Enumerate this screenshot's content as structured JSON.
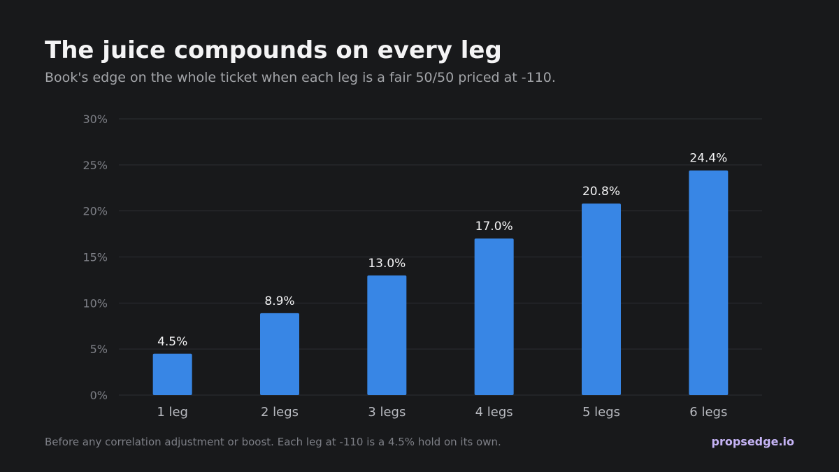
{
  "header": {
    "title": "The juice compounds on every leg",
    "subtitle": "Book's edge on the whole ticket when each leg is a fair 50/50 priced at -110."
  },
  "footer": {
    "note": "Before any correlation adjustment or boost. Each leg at -110 is a 4.5% hold on its own.",
    "brand": "propsedge.io"
  },
  "chart_data": {
    "type": "bar",
    "categories": [
      "1 leg",
      "2 legs",
      "3 legs",
      "4 legs",
      "5 legs",
      "6 legs"
    ],
    "values": [
      4.5,
      8.9,
      13.0,
      17.0,
      20.8,
      24.4
    ],
    "data_labels": [
      "4.5%",
      "8.9%",
      "13.0%",
      "17.0%",
      "20.8%",
      "24.4%"
    ],
    "ylim": [
      0,
      30
    ],
    "yticks": [
      0,
      5,
      10,
      15,
      20,
      25,
      30
    ],
    "ytick_labels": [
      "0%",
      "5%",
      "10%",
      "15%",
      "20%",
      "25%",
      "30%"
    ],
    "xlabel": "",
    "ylabel": "",
    "grid": true,
    "legend": "none"
  },
  "colors": {
    "background": "#18191b",
    "bar": "#3886e5",
    "grid": "#2c2e33",
    "tick_label": "#7d7f86",
    "category_label": "#b8bac0",
    "data_label": "#f4f4f5",
    "brand": "#c5b3f5"
  }
}
